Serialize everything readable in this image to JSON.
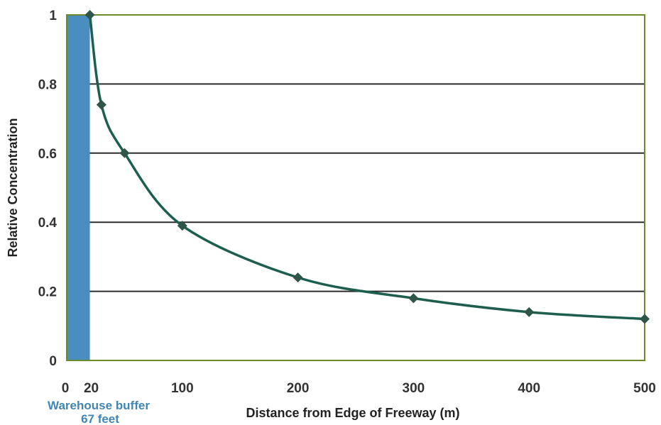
{
  "chart_data": {
    "type": "line",
    "xlabel": "Distance from Edge of Freeway (m)",
    "ylabel": "Relative Concentration",
    "xlim": [
      0,
      500
    ],
    "ylim": [
      0,
      1
    ],
    "x_ticks": [
      {
        "value": 0,
        "label": "0"
      },
      {
        "value": 20,
        "label": "20"
      },
      {
        "value": 100,
        "label": "100"
      },
      {
        "value": 200,
        "label": "200"
      },
      {
        "value": 300,
        "label": "300"
      },
      {
        "value": 400,
        "label": "400"
      },
      {
        "value": 500,
        "label": "500"
      }
    ],
    "y_ticks": [
      {
        "value": 0,
        "label": "0"
      },
      {
        "value": 0.2,
        "label": "0.2"
      },
      {
        "value": 0.4,
        "label": "0.4"
      },
      {
        "value": 0.6,
        "label": "0.6"
      },
      {
        "value": 0.8,
        "label": "0.8"
      },
      {
        "value": 1,
        "label": "1"
      }
    ],
    "grid": "horizontal",
    "series": [
      {
        "x": [
          20,
          30,
          50,
          100,
          200,
          300,
          400,
          500
        ],
        "y": [
          1.0,
          0.74,
          0.6,
          0.39,
          0.24,
          0.18,
          0.14,
          0.12
        ]
      }
    ],
    "shaded_region": {
      "x_range": [
        0,
        20
      ],
      "color": "#4a8ec0",
      "label_line1": "Warehouse buffer",
      "label_line2": "67 feet"
    },
    "colors": {
      "line": "#1d5e4f",
      "marker": "#2f5648",
      "grid": "#2b2b2b",
      "plot_border": "#6a8a2c",
      "buffer": "#4a8ec0"
    }
  }
}
